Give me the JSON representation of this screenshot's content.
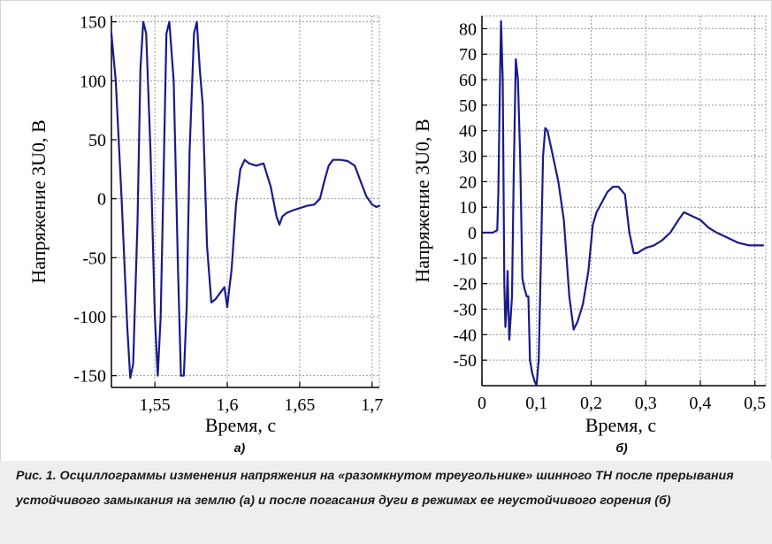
{
  "chart_data": [
    {
      "type": "line",
      "panel_label": "а)",
      "xlabel": "Время, с",
      "ylabel": "Напряжение 3U0, В",
      "xlim": [
        1.52,
        1.705
      ],
      "ylim": [
        -160,
        155
      ],
      "xticks": [
        "1,55",
        "1,6",
        "1,65",
        "1,7"
      ],
      "yticks": [
        "150",
        "100",
        "50",
        "0",
        "-50",
        "-100",
        "-150"
      ],
      "grid": true,
      "color": "#1a1a8c",
      "series": [
        {
          "x": [
            1.52,
            1.523,
            1.527,
            1.531,
            1.533,
            1.535,
            1.538,
            1.54,
            1.542,
            1.544,
            1.547,
            1.55,
            1.552,
            1.554,
            1.556,
            1.558,
            1.56,
            1.563,
            1.566,
            1.568,
            1.57,
            1.572,
            1.574,
            1.577,
            1.579,
            1.581,
            1.583,
            1.586,
            1.589,
            1.592,
            1.595,
            1.598,
            1.6,
            1.601,
            1.603,
            1.606,
            1.609,
            1.612,
            1.615,
            1.62,
            1.625,
            1.63,
            1.634,
            1.636,
            1.638,
            1.641,
            1.645,
            1.65,
            1.655,
            1.66,
            1.664,
            1.667,
            1.67,
            1.673,
            1.678,
            1.683,
            1.688,
            1.692,
            1.696,
            1.7,
            1.703,
            1.705
          ],
          "y": [
            140,
            100,
            0,
            -110,
            -152,
            -140,
            -20,
            110,
            150,
            140,
            40,
            -100,
            -150,
            -100,
            20,
            140,
            150,
            100,
            -60,
            -150,
            -150,
            -90,
            40,
            140,
            150,
            110,
            80,
            -40,
            -88,
            -85,
            -80,
            -75,
            -92,
            -80,
            -60,
            -5,
            25,
            33,
            30,
            28,
            30,
            10,
            -15,
            -22,
            -15,
            -12,
            -10,
            -8,
            -6,
            -5,
            0,
            15,
            28,
            33,
            33,
            32,
            28,
            15,
            2,
            -5,
            -7,
            -6
          ]
        }
      ]
    },
    {
      "type": "line",
      "panel_label": "б)",
      "xlabel": "Время, с",
      "ylabel": "Напряжение 3U0, В",
      "xlim": [
        0,
        0.52
      ],
      "ylim": [
        -60,
        85
      ],
      "xticks": [
        "0",
        "0,1",
        "0,2",
        "0,3",
        "0,4",
        "0,5"
      ],
      "yticks": [
        "80",
        "70",
        "60",
        "50",
        "40",
        "30",
        "20",
        "10",
        "0",
        "-10",
        "-20",
        "-30",
        "-40",
        "-50"
      ],
      "grid": true,
      "color": "#1a1a8c",
      "series": [
        {
          "x": [
            0.0,
            0.01,
            0.02,
            0.028,
            0.03,
            0.033,
            0.035,
            0.038,
            0.041,
            0.043,
            0.045,
            0.047,
            0.05,
            0.055,
            0.058,
            0.062,
            0.066,
            0.07,
            0.074,
            0.078,
            0.082,
            0.085,
            0.088,
            0.092,
            0.096,
            0.1,
            0.104,
            0.108,
            0.112,
            0.116,
            0.12,
            0.125,
            0.13,
            0.14,
            0.15,
            0.16,
            0.168,
            0.175,
            0.185,
            0.195,
            0.203,
            0.21,
            0.22,
            0.23,
            0.24,
            0.25,
            0.262,
            0.27,
            0.278,
            0.285,
            0.292,
            0.3,
            0.315,
            0.33,
            0.345,
            0.36,
            0.37,
            0.38,
            0.39,
            0.4,
            0.415,
            0.43,
            0.45,
            0.47,
            0.49,
            0.51,
            0.515
          ],
          "y": [
            0,
            0,
            0,
            1,
            15,
            60,
            83,
            60,
            -20,
            -37,
            -30,
            -15,
            -42,
            -25,
            20,
            68,
            60,
            30,
            -18,
            -22,
            -25,
            -25,
            -50,
            -55,
            -58,
            -60,
            -50,
            -10,
            30,
            41,
            40,
            35,
            30,
            20,
            5,
            -25,
            -38,
            -35,
            -28,
            -15,
            3,
            8,
            12,
            16,
            18,
            18,
            15,
            0,
            -8,
            -8,
            -7,
            -6,
            -5,
            -3,
            0,
            5,
            8,
            7,
            6,
            5,
            2,
            0,
            -2,
            -4,
            -5,
            -5,
            -5
          ]
        }
      ]
    }
  ],
  "caption": "Рис. 1. Осциллограммы изменения напряжения на «разомкнутом треугольнике» шинного ТН после прерывания устойчивого замыкания на землю (а) и после погасания дуги в режимах ее неустойчивого горения (б)"
}
